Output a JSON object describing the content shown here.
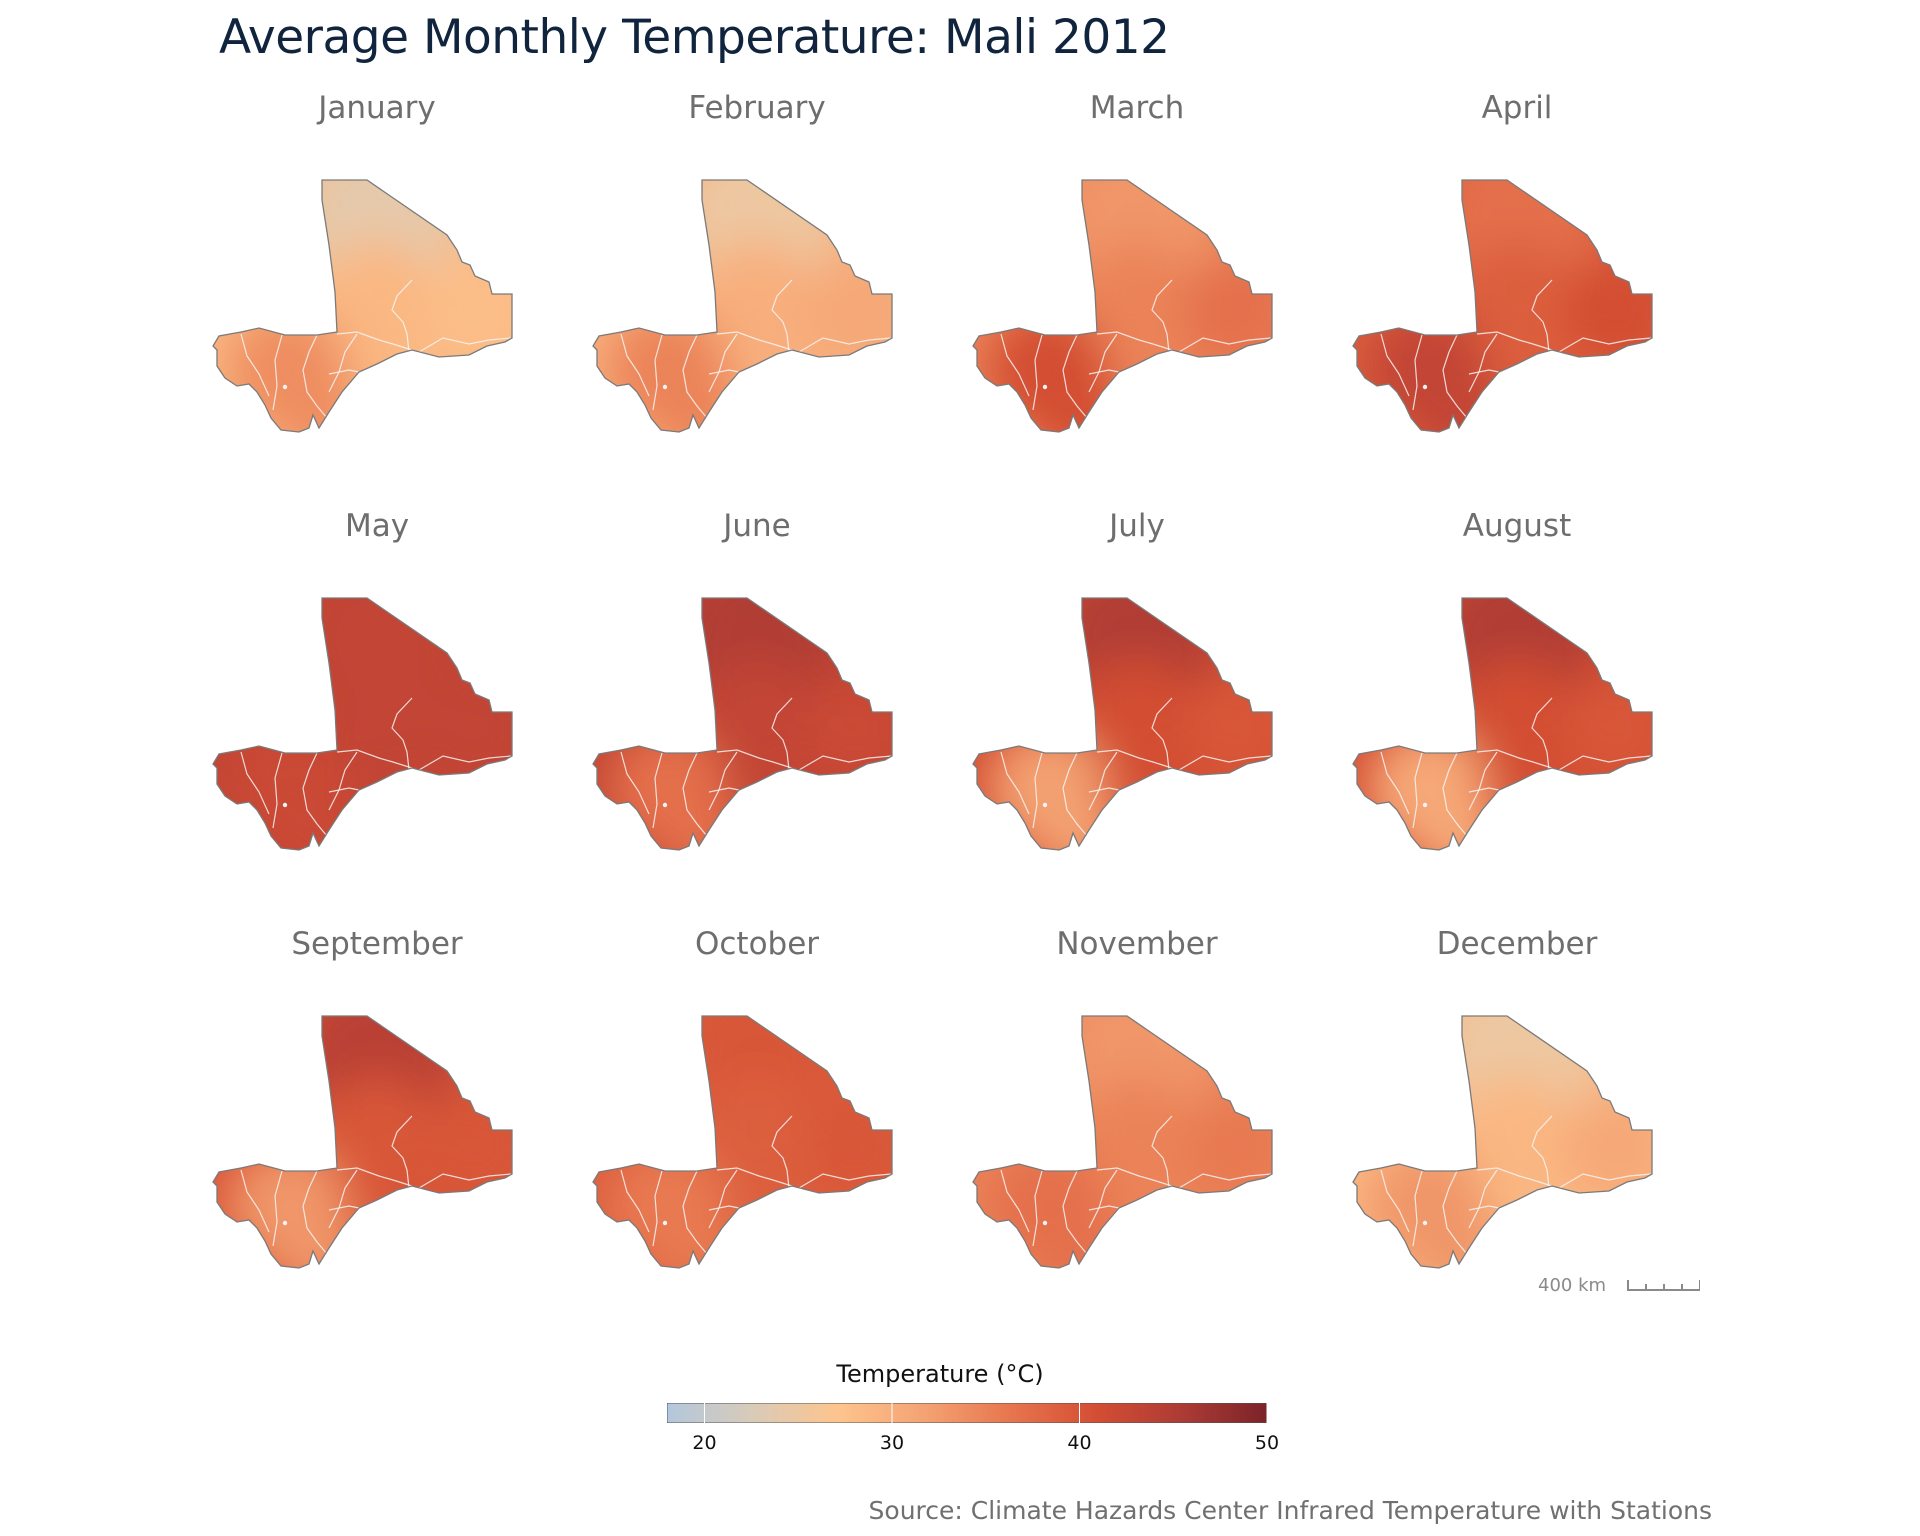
{
  "title": "Average Monthly Temperature: Mali 2012",
  "months": [
    {
      "name": "January",
      "north": 24,
      "centre": 29,
      "east": 28,
      "south": 34
    },
    {
      "name": "February",
      "north": 25,
      "centre": 30,
      "east": 31,
      "south": 35
    },
    {
      "name": "March",
      "north": 33,
      "centre": 35,
      "east": 37,
      "south": 41
    },
    {
      "name": "April",
      "north": 37,
      "centre": 39,
      "east": 41,
      "south": 43
    },
    {
      "name": "May",
      "north": 43,
      "centre": 43,
      "east": 43,
      "south": 42
    },
    {
      "name": "June",
      "north": 45,
      "centre": 43,
      "east": 42,
      "south": 37
    },
    {
      "name": "July",
      "north": 45,
      "centre": 41,
      "east": 40,
      "south": 32
    },
    {
      "name": "August",
      "north": 45,
      "centre": 41,
      "east": 40,
      "south": 31
    },
    {
      "name": "September",
      "north": 44,
      "centre": 40,
      "east": 40,
      "south": 33
    },
    {
      "name": "October",
      "north": 40,
      "centre": 39,
      "east": 40,
      "south": 36
    },
    {
      "name": "November",
      "north": 33,
      "centre": 35,
      "east": 36,
      "south": 37
    },
    {
      "name": "December",
      "north": 25,
      "centre": 29,
      "east": 31,
      "south": 33
    }
  ],
  "legend": {
    "title": "Temperature (°C)",
    "min": 18,
    "max": 50,
    "ticks": [
      20,
      30,
      40,
      50
    ],
    "colors": [
      "#b3c7dd",
      "#d9cbb8",
      "#fec48d",
      "#f4a373",
      "#e7764f",
      "#d44e33",
      "#ad3b35",
      "#7b2328"
    ]
  },
  "scale_bar": {
    "label": "400 km"
  },
  "source": "Source: Climate Hazards Center Infrared Temperature with Stations",
  "colors": {
    "title": "#10243e",
    "panel_title": "#6e6e6e",
    "outline": "#7a7a7a",
    "region_border": "#f5f5f5"
  }
}
